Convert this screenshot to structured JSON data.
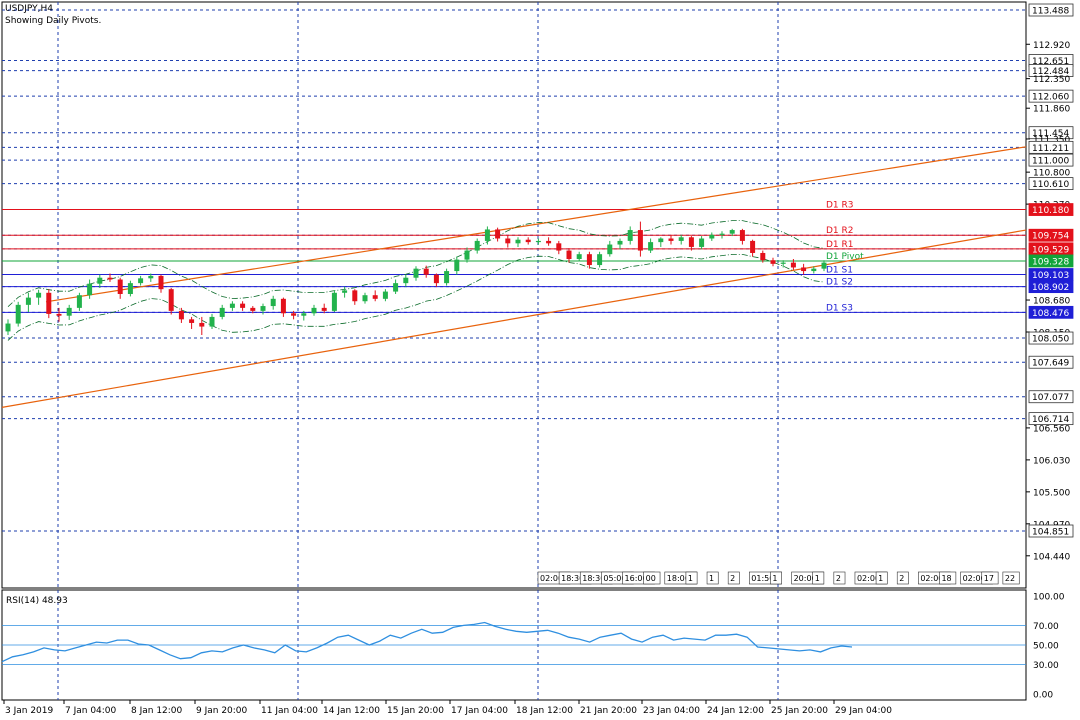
{
  "header": {
    "symbol": "USDJPY,H4",
    "subtitle": "Showing Daily Pivots."
  },
  "colors": {
    "bull": "#22b24c",
    "bear": "#e3111b",
    "resistance": "#e3111b",
    "support": "#1f1fd6",
    "pivot": "#11a43a",
    "trendline": "#e8620c",
    "grid": "#1f3fae",
    "ma": "#0b6b2a",
    "rsi": "#2f8fe0"
  },
  "price_axis": {
    "labels": [
      "113.488",
      "112.920",
      "112.651",
      "112.484",
      "112.350",
      "112.060",
      "111.860",
      "111.454",
      "111.350",
      "111.211",
      "111.000",
      "110.800",
      "110.610",
      "110.270",
      "110.180",
      "109.754",
      "109.529",
      "109.328",
      "109.103",
      "108.902",
      "108.680",
      "108.476",
      "108.150",
      "108.050",
      "107.649",
      "107.077",
      "106.714",
      "106.560",
      "106.030",
      "105.500",
      "104.970",
      "104.851",
      "104.440"
    ],
    "boxed": [
      "113.488",
      "112.651",
      "112.484",
      "112.060",
      "111.454",
      "111.211",
      "111.000",
      "110.610",
      "110.180",
      "109.754",
      "109.529",
      "109.328",
      "109.103",
      "108.902",
      "108.476",
      "108.050",
      "107.649",
      "107.077",
      "106.714",
      "104.851"
    ]
  },
  "pivots": [
    {
      "label": "D1 R3",
      "value": "110.180",
      "type": "resistance"
    },
    {
      "label": "D1 R2",
      "value": "109.754",
      "type": "resistance"
    },
    {
      "label": "D1 R1",
      "value": "109.529",
      "type": "resistance"
    },
    {
      "label": "D1 Pivot",
      "value": "109.328",
      "type": "pivot"
    },
    {
      "label": "D1 S1",
      "value": "109.103",
      "type": "support"
    },
    {
      "label": "D1 S2",
      "value": "108.902",
      "type": "support"
    },
    {
      "label": "D1 S3",
      "value": "108.476",
      "type": "support"
    }
  ],
  "time_markers": [
    "02:00",
    "18:30",
    "18:30",
    "05:00",
    "16:00",
    "00",
    "18:00",
    "1",
    "1",
    "2",
    "01:50",
    "1",
    "20:00",
    "1",
    "2",
    "02:00",
    "1",
    "2",
    "02:00",
    "18",
    "02:00",
    "17",
    "22"
  ],
  "rsi": {
    "label": "RSI(14) 48.93",
    "levels": [
      "100.00",
      "70.00",
      "50.00",
      "30.00",
      "0.00"
    ],
    "values": [
      33,
      38,
      40,
      43,
      47,
      45,
      44,
      47,
      50,
      53,
      52,
      55,
      55,
      51,
      50,
      45,
      40,
      36,
      37,
      42,
      44,
      43,
      47,
      50,
      47,
      45,
      42,
      50,
      44,
      43,
      47,
      52,
      58,
      60,
      55,
      50,
      54,
      60,
      57,
      62,
      66,
      62,
      63,
      68,
      70,
      71,
      73,
      69,
      66,
      64,
      63,
      64,
      65,
      62,
      58,
      56,
      53,
      58,
      60,
      62,
      56,
      53,
      58,
      60,
      55,
      57,
      56,
      55,
      60,
      60,
      61,
      58,
      48,
      47,
      46,
      45,
      44,
      45,
      43,
      47,
      49,
      48
    ]
  },
  "time_axis": [
    "3 Jan 2019",
    "7 Jan 04:00",
    "8 Jan 12:00",
    "9 Jan 20:00",
    "11 Jan 04:00",
    "14 Jan 12:00",
    "15 Jan 20:00",
    "17 Jan 04:00",
    "18 Jan 12:00",
    "21 Jan 20:00",
    "23 Jan 04:00",
    "24 Jan 12:00",
    "25 Jan 20:00",
    "29 Jan 04:00"
  ],
  "candles": [
    [
      108.16,
      108.36,
      108.1,
      108.29
    ],
    [
      108.29,
      108.65,
      108.24,
      108.6
    ],
    [
      108.6,
      108.8,
      108.48,
      108.72
    ],
    [
      108.72,
      108.85,
      108.6,
      108.8
    ],
    [
      108.8,
      108.86,
      108.38,
      108.45
    ],
    [
      108.45,
      108.55,
      108.32,
      108.42
    ],
    [
      108.42,
      108.6,
      108.35,
      108.55
    ],
    [
      108.55,
      108.8,
      108.5,
      108.76
    ],
    [
      108.76,
      109.02,
      108.7,
      108.95
    ],
    [
      108.95,
      109.1,
      108.88,
      109.05
    ],
    [
      109.05,
      109.12,
      108.98,
      109.02
    ],
    [
      109.02,
      109.05,
      108.7,
      108.78
    ],
    [
      108.78,
      109.0,
      108.74,
      108.96
    ],
    [
      108.96,
      109.08,
      108.92,
      109.04
    ],
    [
      109.04,
      109.12,
      108.98,
      109.08
    ],
    [
      109.08,
      109.1,
      108.8,
      108.86
    ],
    [
      108.86,
      108.88,
      108.44,
      108.5
    ],
    [
      108.5,
      108.55,
      108.3,
      108.36
    ],
    [
      108.36,
      108.4,
      108.2,
      108.3
    ],
    [
      108.3,
      108.4,
      108.1,
      108.24
    ],
    [
      108.24,
      108.45,
      108.2,
      108.4
    ],
    [
      108.4,
      108.6,
      108.36,
      108.55
    ],
    [
      108.55,
      108.66,
      108.5,
      108.62
    ],
    [
      108.62,
      108.66,
      108.5,
      108.55
    ],
    [
      108.55,
      108.58,
      108.46,
      108.5
    ],
    [
      108.5,
      108.62,
      108.44,
      108.58
    ],
    [
      108.58,
      108.75,
      108.52,
      108.7
    ],
    [
      108.7,
      108.72,
      108.4,
      108.46
    ],
    [
      108.46,
      108.5,
      108.36,
      108.42
    ],
    [
      108.42,
      108.5,
      108.34,
      108.46
    ],
    [
      108.46,
      108.6,
      108.42,
      108.55
    ],
    [
      108.55,
      108.62,
      108.46,
      108.5
    ],
    [
      108.5,
      108.84,
      108.48,
      108.8
    ],
    [
      108.8,
      108.9,
      108.72,
      108.84
    ],
    [
      108.84,
      108.86,
      108.6,
      108.66
    ],
    [
      108.66,
      108.8,
      108.62,
      108.76
    ],
    [
      108.76,
      108.84,
      108.66,
      108.7
    ],
    [
      108.7,
      108.86,
      108.66,
      108.82
    ],
    [
      108.82,
      109.02,
      108.78,
      108.96
    ],
    [
      108.96,
      109.1,
      108.9,
      109.05
    ],
    [
      109.05,
      109.24,
      109.0,
      109.2
    ],
    [
      109.2,
      109.25,
      109.05,
      109.1
    ],
    [
      109.1,
      109.12,
      108.9,
      108.96
    ],
    [
      108.96,
      109.2,
      108.92,
      109.16
    ],
    [
      109.16,
      109.4,
      109.1,
      109.35
    ],
    [
      109.35,
      109.55,
      109.3,
      109.5
    ],
    [
      109.5,
      109.7,
      109.45,
      109.66
    ],
    [
      109.66,
      109.9,
      109.6,
      109.85
    ],
    [
      109.85,
      109.88,
      109.65,
      109.7
    ],
    [
      109.7,
      109.75,
      109.55,
      109.62
    ],
    [
      109.62,
      109.72,
      109.56,
      109.68
    ],
    [
      109.68,
      109.72,
      109.6,
      109.64
    ],
    [
      109.64,
      109.7,
      109.6,
      109.66
    ],
    [
      109.66,
      109.72,
      109.58,
      109.62
    ],
    [
      109.62,
      109.66,
      109.44,
      109.5
    ],
    [
      109.5,
      109.54,
      109.3,
      109.36
    ],
    [
      109.36,
      109.48,
      109.32,
      109.44
    ],
    [
      109.44,
      109.48,
      109.2,
      109.26
    ],
    [
      109.26,
      109.48,
      109.22,
      109.44
    ],
    [
      109.44,
      109.66,
      109.4,
      109.6
    ],
    [
      109.6,
      109.7,
      109.52,
      109.66
    ],
    [
      109.66,
      109.9,
      109.6,
      109.84
    ],
    [
      109.84,
      109.98,
      109.4,
      109.5
    ],
    [
      109.5,
      109.7,
      109.46,
      109.64
    ],
    [
      109.64,
      109.72,
      109.56,
      109.7
    ],
    [
      109.7,
      109.76,
      109.6,
      109.66
    ],
    [
      109.66,
      109.76,
      109.6,
      109.72
    ],
    [
      109.72,
      109.74,
      109.5,
      109.56
    ],
    [
      109.56,
      109.74,
      109.52,
      109.7
    ],
    [
      109.7,
      109.8,
      109.66,
      109.76
    ],
    [
      109.76,
      109.82,
      109.7,
      109.78
    ],
    [
      109.78,
      109.86,
      109.74,
      109.84
    ],
    [
      109.84,
      109.86,
      109.6,
      109.66
    ],
    [
      109.66,
      109.68,
      109.4,
      109.46
    ],
    [
      109.46,
      109.5,
      109.3,
      109.34
    ],
    [
      109.34,
      109.38,
      109.24,
      109.28
    ],
    [
      109.28,
      109.34,
      109.22,
      109.3
    ],
    [
      109.3,
      109.36,
      109.18,
      109.22
    ],
    [
      109.22,
      109.28,
      109.1,
      109.16
    ],
    [
      109.16,
      109.24,
      109.12,
      109.2
    ],
    [
      109.2,
      109.34,
      109.16,
      109.3
    ]
  ]
}
